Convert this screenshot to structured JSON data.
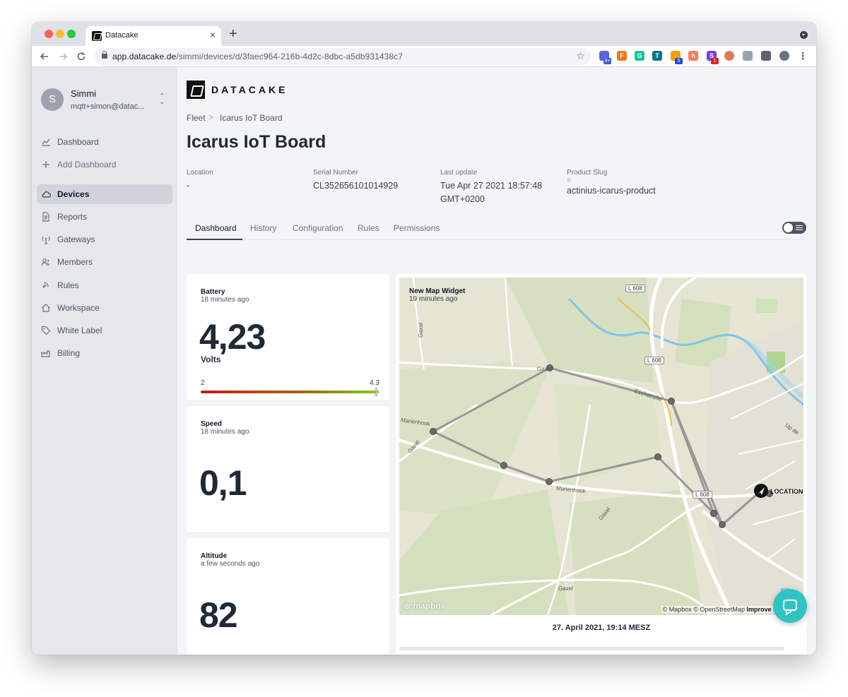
{
  "browser": {
    "tab_title": "Datacake",
    "tab_close": "×",
    "new_tab": "+",
    "url_host": "app.datacake.de",
    "url_path": "/simmi/devices/d/3faec964-216b-4d2c-8dbc-a5db931438c7",
    "back_icon": "arrow-left-icon",
    "forward_icon": "arrow-right-icon",
    "reload_icon": "reload-icon",
    "star_icon": "star-icon",
    "extensions": [
      {
        "name": "extension-1-icon",
        "letter": "",
        "color": "#5a67d8",
        "badge": "9+",
        "badge_color": "#3b5bdb"
      },
      {
        "name": "extension-2-icon",
        "letter": "F",
        "color": "#f97316",
        "badge": "",
        "badge_color": ""
      },
      {
        "name": "grammarly-icon",
        "letter": "G",
        "color": "#15c39a",
        "badge": "",
        "badge_color": ""
      },
      {
        "name": "extension-4-icon",
        "letter": "T",
        "color": "#0e7490",
        "badge": "",
        "badge_color": ""
      },
      {
        "name": "extension-5-icon",
        "letter": "",
        "color": "#f59e0b",
        "badge": "5",
        "badge_color": "#1d4ed8"
      },
      {
        "name": "hubspot-icon",
        "letter": "h",
        "color": "#ff7a59",
        "badge": "",
        "badge_color": ""
      },
      {
        "name": "extension-7-icon",
        "letter": "S",
        "color": "#7c3aed",
        "badge": "1",
        "badge_color": "#dc2626"
      },
      {
        "name": "extension-8-icon",
        "letter": "",
        "color": "#e07a5f",
        "badge": "",
        "badge_color": ""
      },
      {
        "name": "extension-9-icon",
        "letter": "",
        "color": "#9ca3af",
        "badge": "",
        "badge_color": ""
      },
      {
        "name": "puzzle-icon",
        "letter": "",
        "color": "#5f6368",
        "badge": "",
        "badge_color": ""
      },
      {
        "name": "profile-avatar-icon",
        "letter": "",
        "color": "#6b7280",
        "badge": "",
        "badge_color": ""
      },
      {
        "name": "kebab-menu-icon",
        "letter": "⋮",
        "color": "#ffffff",
        "badge": "",
        "badge_color": ""
      }
    ]
  },
  "user": {
    "initial": "S",
    "name": "Simmi",
    "email": "mqtt+simon@datac...",
    "switch_glyph": "⌃⌄"
  },
  "sidebar": {
    "items": [
      {
        "label": "Dashboard",
        "icon": "chart-line-icon"
      },
      {
        "label": "Add Dashboard",
        "icon": "plus-icon"
      },
      {
        "label": "Devices",
        "icon": "cloud-icon"
      },
      {
        "label": "Reports",
        "icon": "document-icon"
      },
      {
        "label": "Gateways",
        "icon": "antenna-icon"
      },
      {
        "label": "Members",
        "icon": "users-icon"
      },
      {
        "label": "Rules",
        "icon": "signal-icon"
      },
      {
        "label": "Workspace",
        "icon": "home-icon"
      },
      {
        "label": "White Label",
        "icon": "tag-icon"
      },
      {
        "label": "Billing",
        "icon": "factory-icon"
      }
    ]
  },
  "brand": {
    "name": "DATACAKE"
  },
  "breadcrumb": {
    "root": "Fleet",
    "separator": ">",
    "current": "Icarus IoT Board"
  },
  "device": {
    "title": "Icarus IoT Board",
    "meta": {
      "location_label": "Location",
      "location_value": "-",
      "serial_label": "Serial Number",
      "serial_value": "CL352656101014929",
      "update_label": "Last update",
      "update_value_1": "Tue Apr 27 2021 18:57:48",
      "update_value_2": "GMT+0200",
      "slug_label": "Product Slug",
      "slug_icon": "®",
      "slug_value": "actinius-icarus-product"
    }
  },
  "tabs": [
    "Dashboard",
    "History",
    "Configuration",
    "Rules",
    "Permissions"
  ],
  "widgets": {
    "battery": {
      "title": "Battery",
      "updated": "18 minutes ago",
      "value": "4,23",
      "unit": "Volts",
      "min": "2",
      "max": "4.3",
      "level": 0.987
    },
    "speed": {
      "title": "Speed",
      "updated": "18 minutes ago",
      "value": "0,1"
    },
    "altitude": {
      "title": "Altitude",
      "updated": "a few seconds ago",
      "value": "82"
    },
    "map": {
      "title": "New Map Widget",
      "updated": "19 minutes ago",
      "marker_label": "LOCATION",
      "road_labels": [
        "L 608",
        "L 608",
        "L 608",
        "Gaxel",
        "Gaxel",
        "Gaxel",
        "Gaxel",
        "Gaxel",
        "Marienhook",
        "Marienhook",
        "Eschstraße",
        "Up de"
      ],
      "attribution": "© Mapbox © OpenStreetMap",
      "improve": "Improve this map",
      "logo": "mapbox",
      "timestamp": "27. April 2021, 19:14 MESZ"
    }
  }
}
